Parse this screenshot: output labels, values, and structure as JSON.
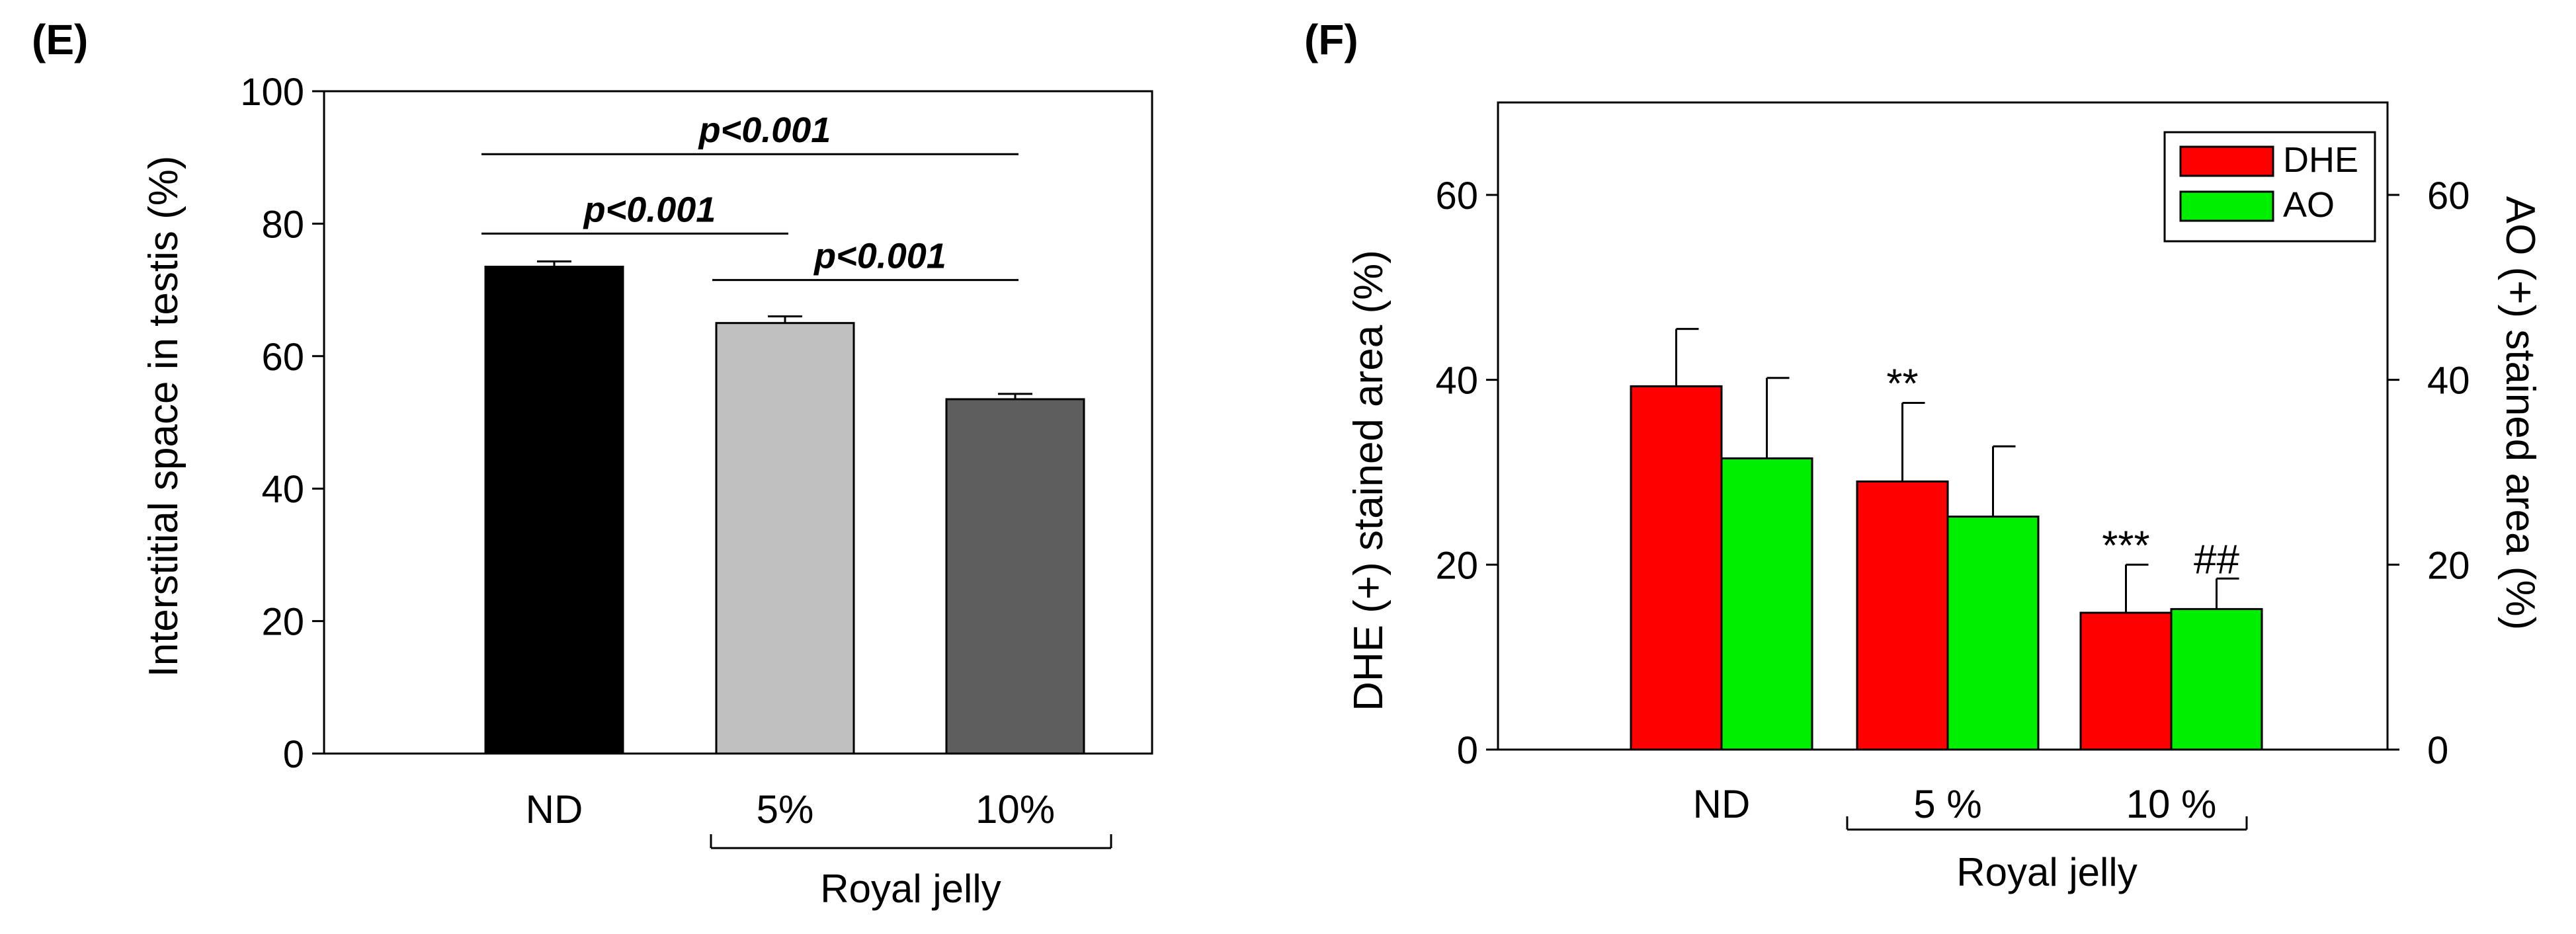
{
  "chart_data": [
    {
      "type": "bar",
      "panel_label": "(E)",
      "categories": [
        "ND",
        "5%",
        "10%"
      ],
      "values": [
        73.5,
        65.0,
        53.5
      ],
      "errors": [
        0.8,
        1.0,
        0.8
      ],
      "colors": [
        "#000000",
        "#c0c0c0",
        "#5e5e5e"
      ],
      "ylabel": "Interstitial space in testis (%)",
      "ylim": [
        0,
        100
      ],
      "yticks": [
        0,
        20,
        40,
        60,
        80,
        100
      ],
      "ytick_labels": [
        "0",
        "20",
        "40",
        "60",
        "80",
        "100"
      ],
      "group_label": "Royal jelly",
      "annotations": [
        {
          "text": "p<0.001",
          "from": 0,
          "to": 1,
          "level": 78.5
        },
        {
          "text": "p<0.001",
          "from": 1,
          "to": 2,
          "level": 71.5
        },
        {
          "text": "p<0.001",
          "from": 0,
          "to": 2,
          "level": 90.5
        }
      ]
    },
    {
      "type": "bar",
      "panel_label": "(F)",
      "categories": [
        "ND",
        "5 %",
        "10 %"
      ],
      "series": [
        {
          "name": "DHE",
          "color": "#ff0000",
          "values": [
            39.3,
            29.0,
            14.8
          ],
          "errors": [
            6.2,
            8.5,
            5.2
          ],
          "marks": [
            "",
            "**",
            "***"
          ]
        },
        {
          "name": "AO",
          "color": "#00ee00",
          "values": [
            31.5,
            25.2,
            15.2
          ],
          "errors": [
            8.7,
            7.6,
            3.3
          ],
          "marks": [
            "",
            "",
            "##"
          ]
        }
      ],
      "ylabel": "DHE (+) stained area (%)",
      "ylabel_right": "AO (+) stained area (%)",
      "ylim": [
        0,
        70
      ],
      "yticks": [
        0,
        20,
        40,
        60
      ],
      "ytick_labels": [
        "0",
        "20",
        "40",
        "60"
      ],
      "group_label": "Royal jelly",
      "legend_position": "top-right"
    }
  ]
}
